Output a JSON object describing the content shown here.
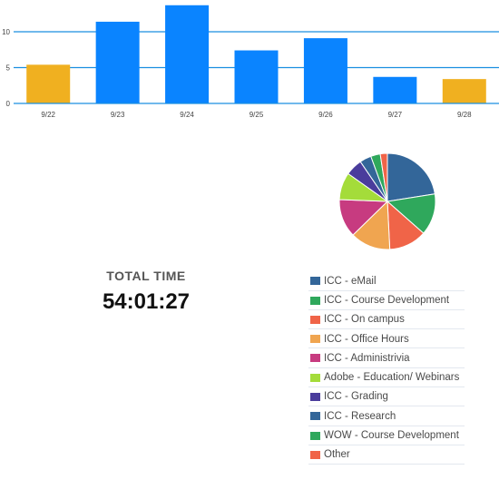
{
  "chart_data": [
    {
      "type": "bar",
      "title": "",
      "xlabel": "",
      "ylabel": "",
      "categories": [
        "9/22",
        "9/23",
        "9/24",
        "9/25",
        "9/26",
        "9/27",
        "9/28"
      ],
      "values": [
        5.4,
        11.4,
        13.7,
        7.4,
        9.1,
        3.7,
        3.4
      ],
      "bar_colors": [
        "#f0b020",
        "#0a84ff",
        "#0a84ff",
        "#0a84ff",
        "#0a84ff",
        "#0a84ff",
        "#f0b020"
      ],
      "ylim": [
        0,
        14
      ],
      "yticks": [
        0,
        5,
        10
      ],
      "grid": true,
      "gridline_color": "#1a8fe0"
    },
    {
      "type": "pie",
      "title": "",
      "slices": [
        {
          "label": "ICC - eMail",
          "value": 22.5,
          "color": "#336699"
        },
        {
          "label": "ICC - Course Development",
          "value": 14,
          "color": "#2fa85c"
        },
        {
          "label": "ICC - On campus",
          "value": 12.7,
          "color": "#f06448"
        },
        {
          "label": "ICC - Office Hours",
          "value": 13.5,
          "color": "#f0a550"
        },
        {
          "label": "ICC - Administrivia",
          "value": 12.9,
          "color": "#c73b80"
        },
        {
          "label": "Adobe - Education/ Webinars",
          "value": 9.2,
          "color": "#a4dc3a"
        },
        {
          "label": "ICC - Grading",
          "value": 5.7,
          "color": "#4a3c9c"
        },
        {
          "label": "ICC - Research",
          "value": 3.9,
          "color": "#336699"
        },
        {
          "label": "WOW - Course Development",
          "value": 3.2,
          "color": "#2fa85c"
        },
        {
          "label": "Other",
          "value": 2.4,
          "color": "#f06448"
        }
      ]
    }
  ],
  "total": {
    "label": "TOTAL  TIME",
    "value": "54:01:27"
  }
}
